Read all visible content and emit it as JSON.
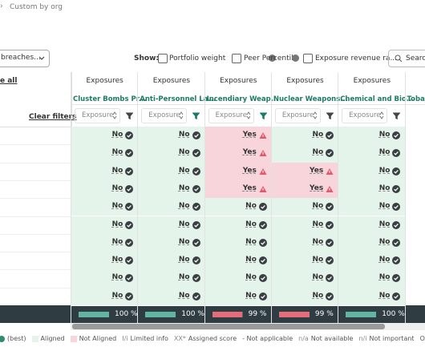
{
  "breadcrumb": "Custom by org",
  "toolbar": {
    "dropdown": "breaches...",
    "show_label": "Show:",
    "options": [
      "Portfolio weight",
      "Peer Percentile",
      "Exposure revenue ra..."
    ],
    "search": "Search"
  },
  "table": {
    "select_all": "e all",
    "clear_filters": "Clear filters",
    "columns": [
      {
        "group": "Exposures",
        "name": "Cluster Bombs Pr...",
        "sub": "Exposure",
        "values": [
          "No",
          "No",
          "No",
          "No",
          "No",
          "No",
          "No",
          "No",
          "No",
          "No"
        ],
        "coverage": {
          "value": 100,
          "label": "100 %"
        },
        "bar_color": "#62b5a4"
      },
      {
        "group": "Exposures",
        "name": "Anti-Personnel La...",
        "sub": "Exposure",
        "values": [
          "No",
          "No",
          "No",
          "No",
          "No",
          "No",
          "No",
          "No",
          "No",
          "No"
        ],
        "coverage": {
          "value": 100,
          "label": "100 %"
        },
        "bar_color": "#62b5a4"
      },
      {
        "group": "Exposures",
        "name": "Incendiary Weap...",
        "sub": "Exposure",
        "values": [
          "Yes",
          "Yes",
          "Yes",
          "Yes",
          "No",
          "No",
          "No",
          "No",
          "No",
          "No"
        ],
        "coverage": {
          "value": 99,
          "label": "99 %"
        },
        "bar_color": "#e46d7b"
      },
      {
        "group": "Exposures",
        "name": "Nuclear Weapons...",
        "sub": "Exposure",
        "values": [
          "No",
          "No",
          "Yes",
          "Yes",
          "No",
          "No",
          "No",
          "No",
          "No",
          "No"
        ],
        "coverage": {
          "value": 99,
          "label": "99 %"
        },
        "bar_color": "#e46d7b"
      },
      {
        "group": "Exposures",
        "name": "Chemical and Bio...",
        "sub": "Exposure",
        "values": [
          "No",
          "No",
          "No",
          "No",
          "No",
          "No",
          "No",
          "No",
          "No",
          "No"
        ],
        "coverage": {
          "value": 100,
          "label": "100 %"
        },
        "bar_color": "#62b5a4"
      },
      {
        "name": "Tobacc"
      }
    ]
  },
  "legend": [
    {
      "text": "(best)"
    },
    {
      "text": "Aligned"
    },
    {
      "text": "Not Aligned"
    },
    {
      "key": "I/i",
      "text": "Limited info"
    },
    {
      "key": "XX*",
      "text": "Assigned score"
    },
    {
      "text": "- Not applicable"
    },
    {
      "key": "n/a",
      "text": "Not available"
    },
    {
      "key": "n/i",
      "text": "Not important"
    },
    {
      "text": "Outlie"
    }
  ]
}
